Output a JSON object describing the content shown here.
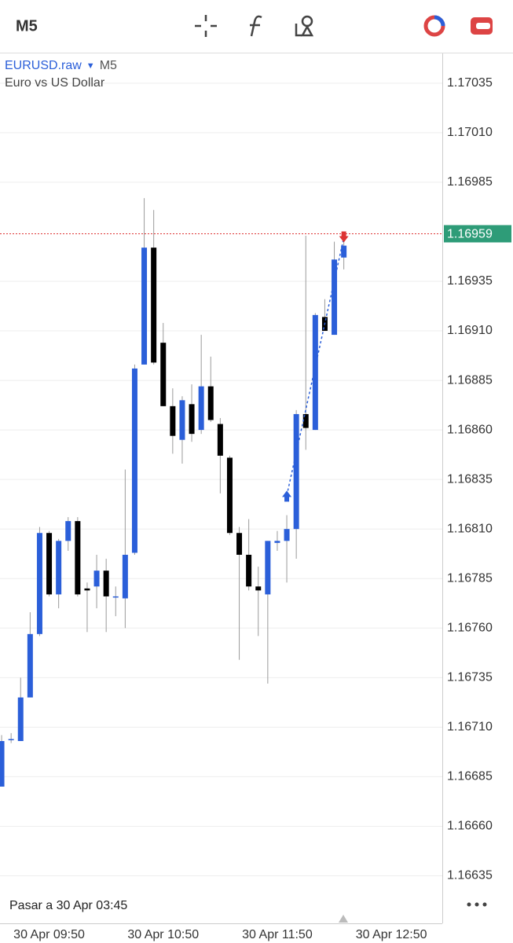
{
  "toolbar": {
    "timeframe": "M5"
  },
  "chart_data": {
    "type": "candlestick",
    "symbol": "EURUSD.raw",
    "timeframe": "M5",
    "subtitle": "Euro vs US Dollar",
    "open": [
      1.1668,
      1.16704,
      1.16703,
      1.16725,
      1.16757,
      1.16808,
      1.16777,
      1.16804,
      1.16814,
      1.1678,
      1.16781,
      1.16789,
      1.16776,
      1.16775,
      1.16798,
      1.16893,
      1.16952,
      1.16904,
      1.16872,
      1.16855,
      1.16873,
      1.1686,
      1.16882,
      1.16863,
      1.16846,
      1.16808,
      1.16797,
      1.16781,
      1.16777,
      1.16803,
      1.16804,
      1.1681,
      1.16868,
      1.1686,
      1.16917,
      1.16908,
      1.16947
    ],
    "high": [
      1.16706,
      1.16707,
      1.16735,
      1.16768,
      1.16811,
      1.16809,
      1.16805,
      1.16816,
      1.16816,
      1.16783,
      1.16797,
      1.16795,
      1.16781,
      1.1684,
      1.16893,
      1.16977,
      1.16971,
      1.16914,
      1.16881,
      1.16877,
      1.16883,
      1.16908,
      1.16897,
      1.16866,
      1.16847,
      1.16811,
      1.16815,
      1.16791,
      1.16804,
      1.16809,
      1.16817,
      1.1687,
      1.16958,
      1.16919,
      1.16926,
      1.16955,
      1.1696
    ],
    "low": [
      1.1668,
      1.16702,
      1.16703,
      1.16725,
      1.16756,
      1.16776,
      1.1677,
      1.16799,
      1.16776,
      1.16758,
      1.1677,
      1.16758,
      1.16766,
      1.1676,
      1.16797,
      1.16893,
      1.16893,
      1.16872,
      1.16848,
      1.16843,
      1.16854,
      1.16858,
      1.16864,
      1.16828,
      1.16807,
      1.16744,
      1.16779,
      1.16756,
      1.16732,
      1.16799,
      1.16783,
      1.16795,
      1.1685,
      1.1686,
      1.1691,
      1.16908,
      1.16941
    ],
    "close": [
      1.16703,
      1.16704,
      1.16725,
      1.16757,
      1.16808,
      1.16777,
      1.16804,
      1.16814,
      1.16777,
      1.16779,
      1.16789,
      1.16776,
      1.16776,
      1.16797,
      1.16891,
      1.16952,
      1.16894,
      1.16872,
      1.16857,
      1.16875,
      1.16858,
      1.16882,
      1.16865,
      1.16847,
      1.16808,
      1.16797,
      1.16781,
      1.16779,
      1.16804,
      1.16804,
      1.1681,
      1.16868,
      1.16861,
      1.16918,
      1.1691,
      1.16946,
      1.16953
    ],
    "up_color": "#2b5fd9",
    "down_color": "#000000",
    "wick_color": "#9a9a9a",
    "xlim": [
      -0.17,
      46.36
    ],
    "xticks": [
      {
        "value": 5,
        "label": "30 Apr 09:50"
      },
      {
        "value": 17,
        "label": "30 Apr 10:50"
      },
      {
        "value": 29,
        "label": "30 Apr 11:50"
      },
      {
        "value": 41,
        "label": "30 Apr 12:50"
      }
    ],
    "ylim": [
      1.16611,
      1.1705
    ],
    "yticks": [
      1.17035,
      {
        "value": 1.1701,
        "label": "1.17010"
      },
      1.16985,
      1.16935,
      {
        "value": 1.1691,
        "label": "1.16910"
      },
      1.16885,
      {
        "value": 1.1686,
        "label": "1.16860"
      },
      1.16835,
      {
        "value": 1.1681,
        "label": "1.16810"
      },
      1.16785,
      {
        "value": 1.1676,
        "label": "1.16760"
      },
      1.16735,
      {
        "value": 1.1671,
        "label": "1.16710"
      },
      1.16685,
      {
        "value": 1.1666,
        "label": "1.16660"
      },
      1.16635
    ],
    "grid": true,
    "current_price": 1.16959,
    "current_price_color": "#2e9c78",
    "trade": {
      "entry": 1.16827,
      "exit": 1.16957
    },
    "goto_label": "Pasar a 30 Apr 03:45"
  }
}
